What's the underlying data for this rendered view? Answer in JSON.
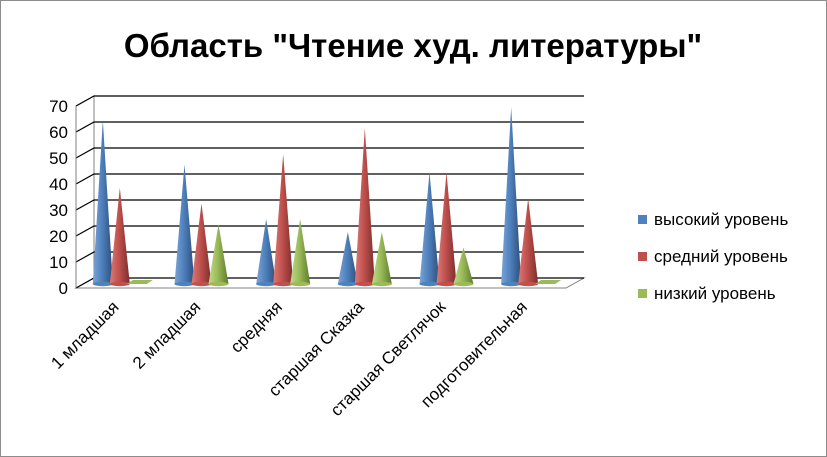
{
  "chart_data": {
    "type": "bar",
    "bar_shape": "cone-3d",
    "title": "Область \"Чтение худ. литературы\"",
    "xlabel": "",
    "ylabel": "",
    "ylim": [
      0,
      70
    ],
    "yticks": [
      0,
      10,
      20,
      30,
      40,
      50,
      60,
      70
    ],
    "grid": true,
    "legend_position": "right",
    "categories": [
      "1 младшая",
      "2 младшая",
      "средняя",
      "старшая Сказка",
      "старшая Светлячок",
      "подготовительная"
    ],
    "series": [
      {
        "name": "высокий уровень",
        "color": "#4f81bd",
        "values": [
          63,
          46,
          25,
          20,
          43,
          68
        ]
      },
      {
        "name": "средний уровень",
        "color": "#c0504d",
        "values": [
          37,
          31,
          50,
          60,
          43,
          33
        ]
      },
      {
        "name": "низкий уровень",
        "color": "#9bbb59",
        "values": [
          0,
          23,
          25,
          20,
          14,
          0
        ]
      }
    ]
  }
}
